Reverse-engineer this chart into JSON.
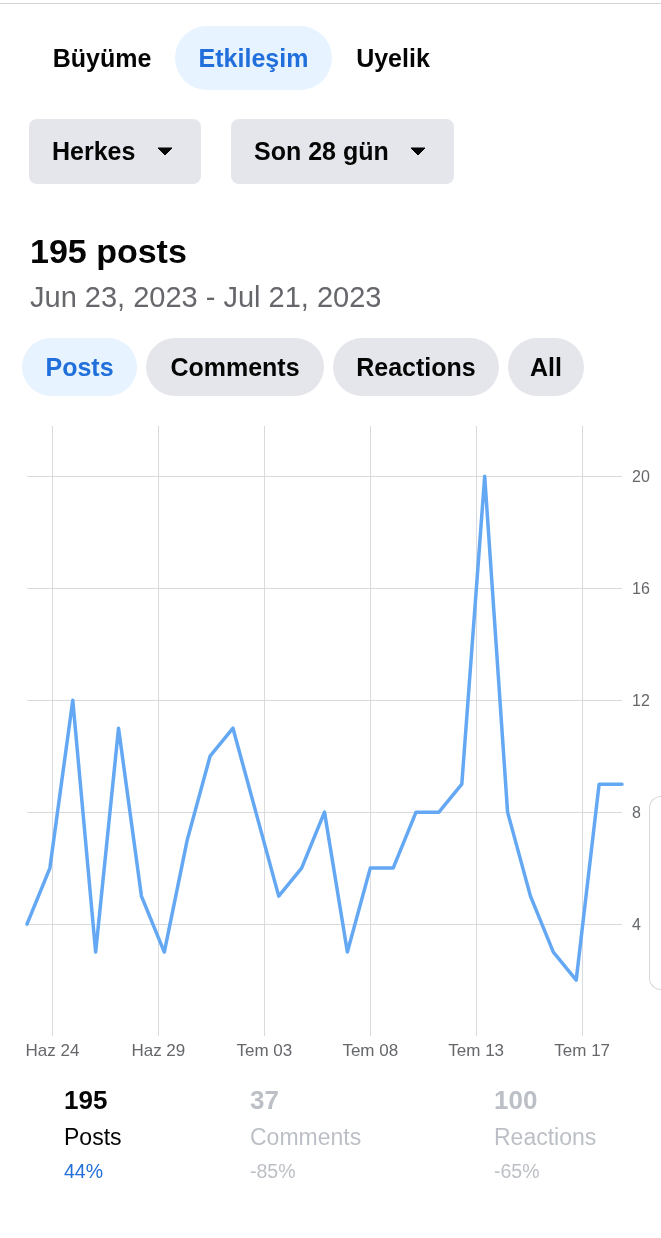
{
  "chart_data": {
    "type": "line",
    "title": "195 posts",
    "subtitle": "Jun 23, 2023 - Jul 21, 2023",
    "annotations": [
      "Büyüme",
      "Etkileşim",
      "Uyelik",
      "Herkes",
      "Son 28 gün",
      "Posts",
      "Comments",
      "Reactions",
      "All",
      "195",
      "Posts",
      "44%",
      "37",
      "Comments",
      "-85%",
      "100",
      "Reactions",
      "-65%"
    ],
    "x": [
      "2023-06-23",
      "2023-06-24",
      "2023-06-25",
      "2023-06-26",
      "2023-06-27",
      "2023-06-28",
      "2023-06-29",
      "2023-06-30",
      "2023-07-01",
      "2023-07-02",
      "2023-07-03",
      "2023-07-04",
      "2023-07-05",
      "2023-07-06",
      "2023-07-07",
      "2023-07-08",
      "2023-07-09",
      "2023-07-10",
      "2023-07-11",
      "2023-07-12",
      "2023-07-13",
      "2023-07-14",
      "2023-07-15",
      "2023-07-16",
      "2023-07-17",
      "2023-07-18",
      "2023-07-19"
    ],
    "series": [
      {
        "color": "#64a8f4",
        "values": [
          4,
          6,
          12,
          3,
          11,
          5,
          3,
          7,
          10,
          11,
          8,
          5,
          6,
          8,
          3,
          6,
          6,
          8,
          8,
          9,
          20,
          8,
          5,
          3,
          2,
          9,
          9
        ]
      }
    ],
    "xlim": [
      "2023-06-23",
      "2023-07-19"
    ],
    "xticks": [
      {
        "value": "2023-06-24T02:40",
        "label": "Haz 24"
      },
      {
        "value": "2023-06-28T17:45",
        "label": "Haz 29"
      },
      {
        "value": "2023-07-03T08:55",
        "label": "Tem 03"
      },
      {
        "value": "2023-07-08T00:00",
        "label": "Tem 08"
      },
      {
        "value": "2023-07-12T15:05",
        "label": "Tem 13"
      },
      {
        "value": "2023-07-17T06:15",
        "label": "Tem 17"
      }
    ],
    "ylim": [
      0,
      21.8
    ],
    "yticks": [
      4,
      8,
      12,
      16,
      20
    ],
    "grid": true,
    "marker": "none",
    "line_style": "solid"
  }
}
